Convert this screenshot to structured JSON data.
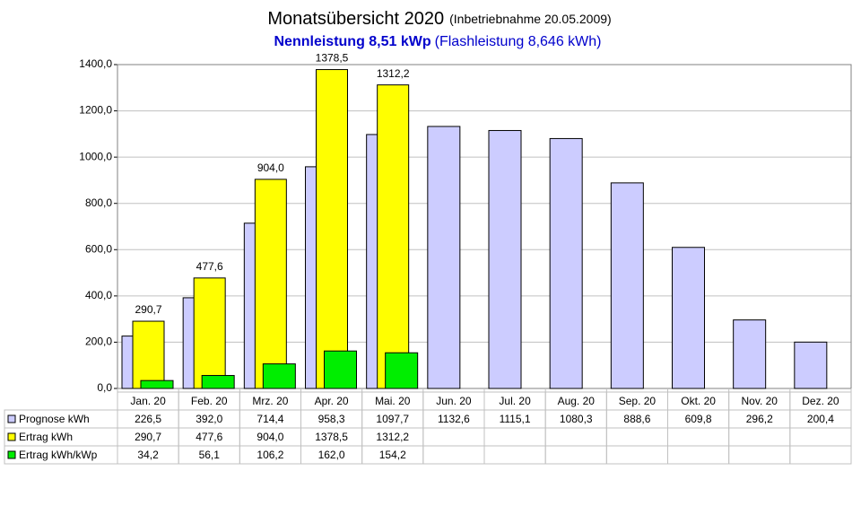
{
  "chart_data": {
    "type": "bar",
    "title": "Monatsübersicht 2020",
    "title_note": "(Inbetriebnahme  20.05.2009)",
    "subtitle": "Nennleistung 8,51 kWp",
    "subtitle_note": "(Flashleistung 8,646 kWh)",
    "categories": [
      "Jan. 20",
      "Feb. 20",
      "Mrz. 20",
      "Apr. 20",
      "Mai. 20",
      "Jun. 20",
      "Jul. 20",
      "Aug. 20",
      "Sep. 20",
      "Okt. 20",
      "Nov. 20",
      "Dez. 20"
    ],
    "series": [
      {
        "name": "Prognose kWh",
        "color": "#ccccff",
        "show_labels": false,
        "values": [
          226.5,
          392.0,
          714.4,
          958.3,
          1097.7,
          1132.6,
          1115.1,
          1080.3,
          888.6,
          609.8,
          296.2,
          200.4
        ],
        "value_labels": [
          "226,5",
          "392,0",
          "714,4",
          "958,3",
          "1097,7",
          "1132,6",
          "1115,1",
          "1080,3",
          "888,6",
          "609,8",
          "296,2",
          "200,4"
        ]
      },
      {
        "name": "Ertrag kWh",
        "color": "#ffff00",
        "show_labels": true,
        "values": [
          290.7,
          477.6,
          904.0,
          1378.5,
          1312.2,
          null,
          null,
          null,
          null,
          null,
          null,
          null
        ],
        "value_labels": [
          "290,7",
          "477,6",
          "904,0",
          "1378,5",
          "1312,2",
          null,
          null,
          null,
          null,
          null,
          null,
          null
        ]
      },
      {
        "name": "Ertrag kWh/kWp",
        "color": "#00ee00",
        "show_labels": false,
        "values": [
          34.2,
          56.1,
          106.2,
          162.0,
          154.2,
          null,
          null,
          null,
          null,
          null,
          null,
          null
        ],
        "value_labels": [
          "34,2",
          "56,1",
          "106,2",
          "162,0",
          "154,2",
          null,
          null,
          null,
          null,
          null,
          null,
          null
        ]
      }
    ],
    "ylim": [
      0,
      1400
    ],
    "yticks": [
      {
        "value": 0,
        "label": "0,0"
      },
      {
        "value": 200,
        "label": "200,0"
      },
      {
        "value": 400,
        "label": "400,0"
      },
      {
        "value": 600,
        "label": "600,0"
      },
      {
        "value": 800,
        "label": "800,0"
      },
      {
        "value": 1000,
        "label": "1000,0"
      },
      {
        "value": 1200,
        "label": "1200,0"
      },
      {
        "value": 1400,
        "label": "1400,0"
      }
    ],
    "grid": true
  }
}
